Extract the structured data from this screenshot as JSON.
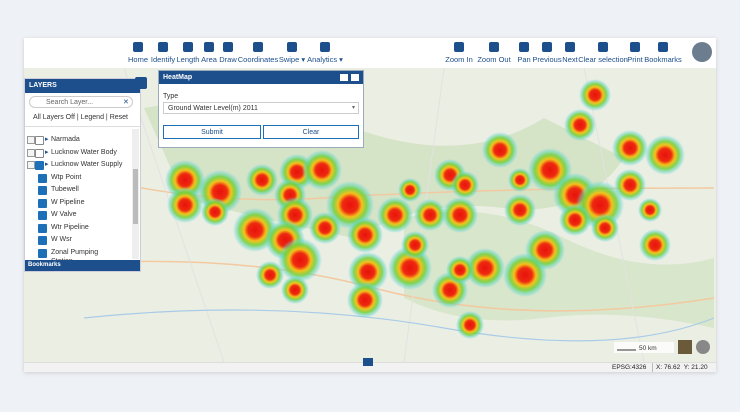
{
  "toolbar": {
    "left": [
      "Home",
      "Identify",
      "Length",
      "Area",
      "Draw",
      "Coordinates",
      "Swipe",
      "Analytics"
    ],
    "right": [
      "Zoom In",
      "Zoom Out",
      "Pan",
      "Previous",
      "Next",
      "Clear selection",
      "Print",
      "Bookmarks"
    ]
  },
  "layers": {
    "title": "LAYERS",
    "search_placeholder": "Search Layer...",
    "links": [
      "All Layers Off",
      "Legend",
      "Reset"
    ],
    "tree": [
      {
        "label": "Narmada",
        "checked": false
      },
      {
        "label": "Lucknow Water Body",
        "checked": false
      },
      {
        "label": "Lucknow Water Supply",
        "checked": true,
        "children": [
          {
            "label": "Wtp Point",
            "checked": true
          },
          {
            "label": "Tubewell",
            "checked": true
          },
          {
            "label": "W Pipeline",
            "checked": true
          },
          {
            "label": "W Valve",
            "checked": true
          },
          {
            "label": "Wtr Pipeline",
            "checked": true
          },
          {
            "label": "W Wsr",
            "checked": true
          },
          {
            "label": "Zonal Pumping Station",
            "checked": true
          }
        ]
      }
    ],
    "bookmarks": "Bookmarks"
  },
  "heatmap_dialog": {
    "title": "HeatMap",
    "type_label": "Type",
    "type_value": "Ground Water Level(m) 2011",
    "buttons": [
      "Submit",
      "Clear"
    ]
  },
  "map": {
    "scale": "50 km"
  },
  "status": {
    "projection": "EPSG:4326",
    "coordinates": "X: 76.62  Y: 21.20"
  }
}
